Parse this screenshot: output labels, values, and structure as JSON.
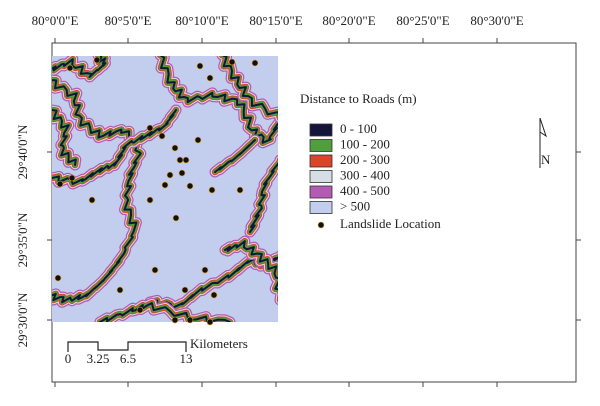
{
  "map": {
    "longitude_labels": [
      "80°0'0\"E",
      "80°5'0\"E",
      "80°10'0\"E",
      "80°15'0\"E",
      "80°20'0\"E",
      "80°25'0\"E",
      "80°30'0\"E"
    ],
    "latitude_labels": [
      "29°40'0\"N",
      "29°35'0\"N",
      "29°30'0\"N"
    ],
    "legend": {
      "title": "Distance to Roads (m)",
      "classes": [
        {
          "label": "0 - 100",
          "color": "#15153c"
        },
        {
          "label": "100 - 200",
          "color": "#4fa03c"
        },
        {
          "label": "200 - 300",
          "color": "#d9442b"
        },
        {
          "label": "300 - 400",
          "color": "#d6dde4"
        },
        {
          "label": "400 - 500",
          "color": "#b35bb3"
        },
        {
          "label": "> 500",
          "color": "#c3cdee"
        }
      ],
      "point_label": "Landslide Location"
    },
    "scale_bar": {
      "ticks": [
        "0",
        "3.25",
        "6.5",
        "13"
      ],
      "unit": "Kilometers"
    },
    "north_arrow": "N"
  }
}
